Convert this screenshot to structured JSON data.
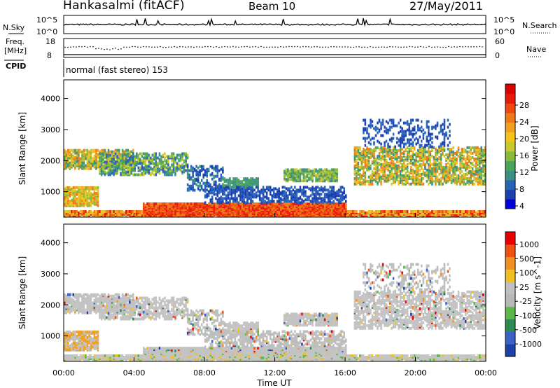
{
  "header": {
    "station": "Hankasalmi (fitACF)",
    "beam": "Beam 10",
    "date": "27/May/2011"
  },
  "top_panels": {
    "nsky_label": "N.Sky",
    "nsearch_label": "N.Search",
    "freq_label_1": "Freq.",
    "freq_label_2": "[MHz]",
    "nave_label": "Nave",
    "cpid_label": "CPID",
    "cpid_text": "normal (fast stereo) 153",
    "nsky_ticks": [
      "10^5",
      "10^0"
    ],
    "nsearch_ticks": [
      "10^5",
      "10^0"
    ],
    "freq_ticks": [
      "18",
      "8"
    ],
    "nave_ticks": [
      "60",
      "0"
    ]
  },
  "chart_data": [
    {
      "type": "heatmap",
      "title": "",
      "xlabel": "",
      "ylabel": "Slant Range [km]",
      "x_ticks": [
        "00:00",
        "04:00",
        "08:00",
        "12:00",
        "16:00",
        "20:00",
        "00:00"
      ],
      "y_ticks": [
        "1000",
        "2000",
        "3000",
        "4000"
      ],
      "xlim_hours": [
        0,
        24
      ],
      "ylim_km": [
        180,
        4600
      ],
      "colorbar": {
        "label": "Power [dB]",
        "ticks": [
          "4",
          "8",
          "12",
          "16",
          "20",
          "24",
          "28"
        ],
        "colors": [
          "#0000dd",
          "#1a3fb0",
          "#2a63b8",
          "#3b8f83",
          "#4aa55a",
          "#88bb3a",
          "#c8c830",
          "#f2c41b",
          "#f2a020",
          "#f07a1a",
          "#ee4a10",
          "#ea1a0a",
          "#dd0000"
        ]
      }
    },
    {
      "type": "heatmap",
      "title": "",
      "xlabel": "Time UT",
      "ylabel": "Slant Range [km]",
      "x_ticks": [
        "00:00",
        "04:00",
        "08:00",
        "12:00",
        "16:00",
        "20:00",
        "00:00"
      ],
      "y_ticks": [
        "1000",
        "2000",
        "3000",
        "4000"
      ],
      "xlim_hours": [
        0,
        24
      ],
      "ylim_km": [
        180,
        4600
      ],
      "colorbar": {
        "label": "Velocity [m s^-1]",
        "ticks": [
          "1000",
          "500",
          "100",
          "25",
          "-25",
          "-100",
          "-500",
          "-1000"
        ],
        "colors": [
          "#1f3fa8",
          "#3c62c8",
          "#2e8a55",
          "#5cb848",
          "#b8b8b8",
          "#c0c0c0",
          "#f0c020",
          "#f09020",
          "#f05010",
          "#e80000"
        ]
      }
    }
  ]
}
